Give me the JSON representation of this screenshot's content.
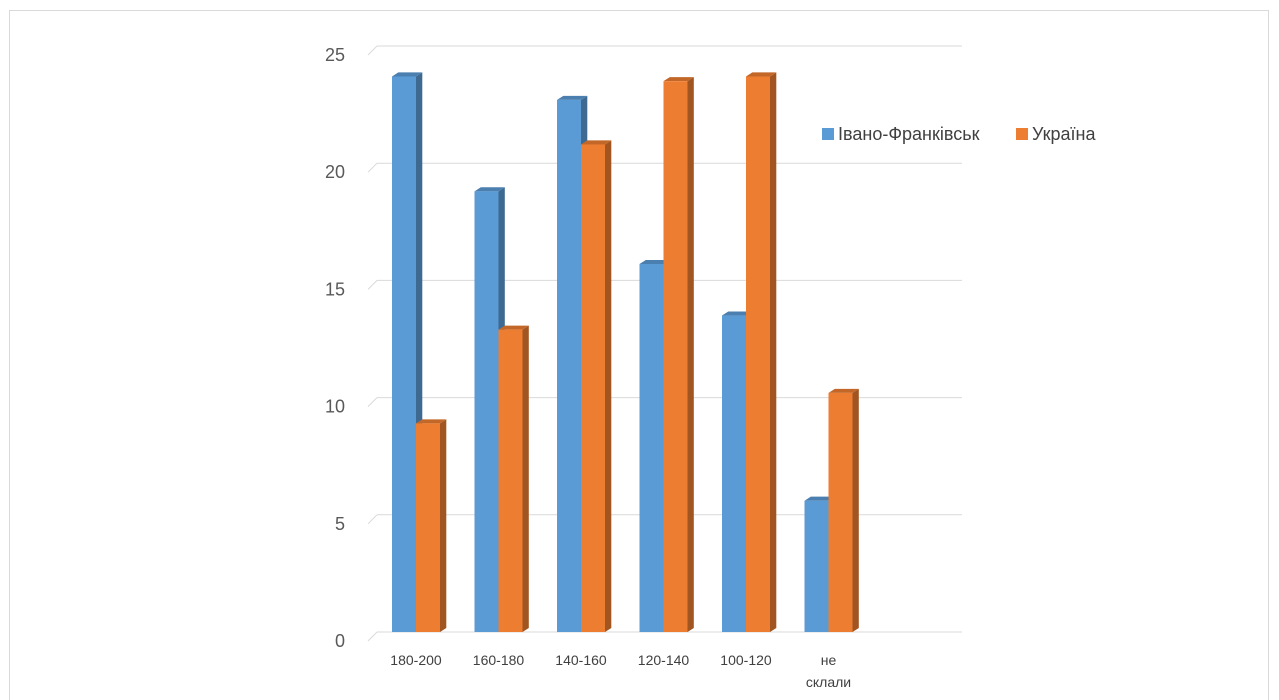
{
  "chart_data": {
    "type": "bar",
    "title": "",
    "xlabel": "",
    "ylabel": "",
    "categories": [
      [
        "180-200"
      ],
      [
        "160-180"
      ],
      [
        "140-160"
      ],
      [
        "120-140"
      ],
      [
        "100-120"
      ],
      [
        "не",
        "склали"
      ]
    ],
    "series": [
      {
        "name": "Івано-Франківськ",
        "color": "#5B9BD5",
        "values": [
          23.7,
          18.8,
          22.7,
          15.7,
          13.5,
          5.6
        ]
      },
      {
        "name": "Україна",
        "color": "#ED7D31",
        "values": [
          8.9,
          12.9,
          20.8,
          23.5,
          23.7,
          10.2
        ]
      }
    ],
    "ylim": [
      0,
      25
    ],
    "yticks": [
      "0",
      "5",
      "10",
      "15",
      "20",
      "25"
    ],
    "grid": true,
    "legend": "right"
  }
}
